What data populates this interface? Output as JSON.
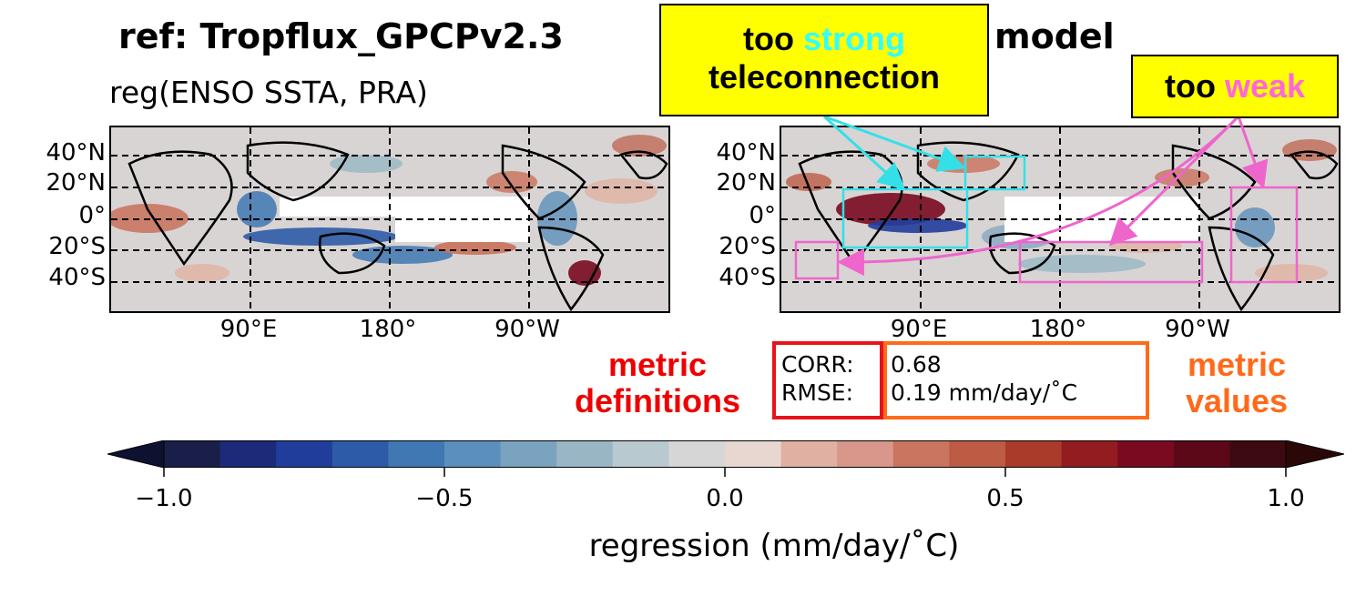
{
  "title_left": "ref: Tropflux_GPCPv2.3",
  "title_right": "model",
  "subtitle": "reg(ENSO SSTA, PRA)",
  "map_left": {
    "lat_ticks": [
      "40°N",
      "20°N",
      "0°",
      "20°S",
      "40°S"
    ],
    "lon_ticks": [
      "90°E",
      "180°",
      "90°W"
    ]
  },
  "map_right": {
    "lat_ticks": [
      "40°N",
      "20°N",
      "0°",
      "20°S",
      "40°S"
    ],
    "lon_ticks": [
      "90°E",
      "180°",
      "90°W"
    ]
  },
  "callout_strong": {
    "before": "too ",
    "highlight": "strong",
    "line2": "teleconnection",
    "highlight_color": "#33ffff"
  },
  "callout_weak": {
    "before": "too ",
    "highlight": "weak",
    "highlight_color": "#ff66dd"
  },
  "metric_definitions": {
    "line1": "metric",
    "line2": "definitions",
    "color": "#ee0000"
  },
  "metric_values_label": {
    "line1": "metric",
    "line2": "values",
    "color": "#ff6a1a"
  },
  "metrics": [
    {
      "name": "CORR:",
      "value": "0.68"
    },
    {
      "name": "RMSE:",
      "value": "0.19 mm/day/˚C"
    }
  ],
  "colorbar": {
    "ticks": [
      "−1.0",
      "−0.5",
      "0.0",
      "0.5",
      "1.0"
    ],
    "label": "regression (mm/day/˚C)",
    "range": [
      -1.0,
      1.0
    ],
    "step": 0.1,
    "colors": [
      "#1a1f4a",
      "#1c2a7a",
      "#213d9c",
      "#2d5ba7",
      "#3f78b3",
      "#5b8fbc",
      "#7aa3c0",
      "#99b6c4",
      "#b8c9d0",
      "#d6d6d6",
      "#e8d6d0",
      "#e0b1a2",
      "#d8978a",
      "#c97560",
      "#bd5b44",
      "#aa3a2a",
      "#931c20",
      "#7a0a20",
      "#5c0818",
      "#3d0a12"
    ],
    "extend_low": "#0e1230",
    "extend_high": "#2a0808"
  }
}
